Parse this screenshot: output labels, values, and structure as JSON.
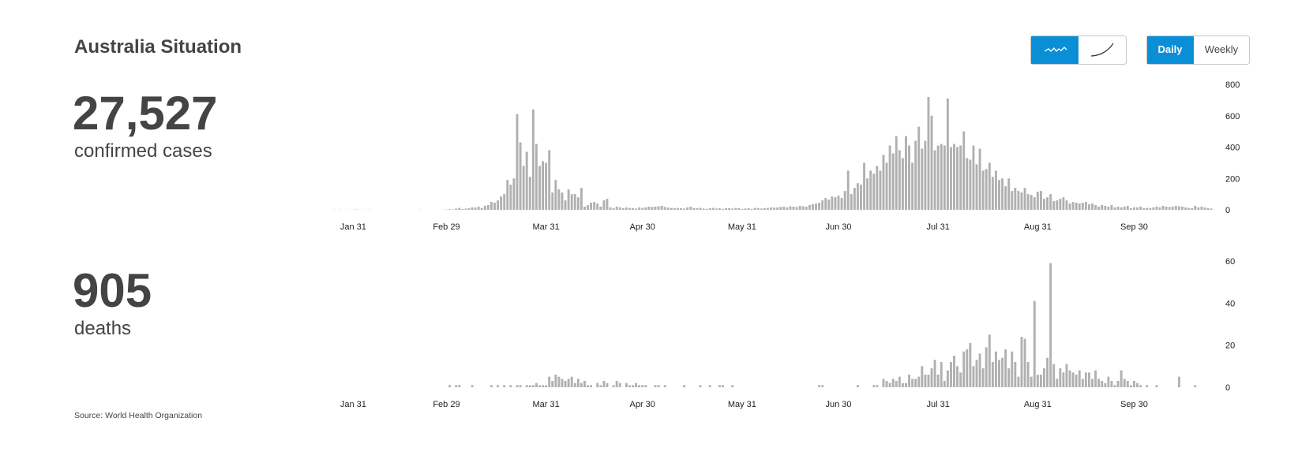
{
  "title": "Australia Situation",
  "source": "Source: World Health Organization",
  "controls": [
    "Daily",
    "Weekly"
  ],
  "chart_data": [
    {
      "type": "bar",
      "headline": "27,527",
      "subtitle": "confirmed cases",
      "color": "#b0b0b0",
      "categories": [
        null,
        null,
        null,
        null,
        null,
        null,
        "Jan 31",
        null,
        null,
        null,
        null,
        null,
        null,
        null,
        null,
        null,
        null,
        null,
        null,
        null,
        null,
        null,
        null,
        null,
        null,
        null,
        null,
        null,
        null,
        null,
        null,
        null,
        null,
        null,
        null,
        "Feb 29",
        null,
        null,
        null,
        null,
        null,
        null,
        null,
        null,
        null,
        null,
        null,
        null,
        null,
        null,
        null,
        null,
        null,
        null,
        null,
        null,
        null,
        null,
        null,
        null,
        null,
        null,
        null,
        null,
        null,
        null,
        "Mar 31",
        null,
        null,
        null,
        null,
        null,
        null,
        null,
        null,
        null,
        null,
        null,
        null,
        null,
        null,
        null,
        null,
        null,
        null,
        null,
        null,
        null,
        null,
        null,
        null,
        null,
        null,
        null,
        null,
        null,
        "Apr 30",
        null,
        null,
        null,
        null,
        null,
        null,
        null,
        null,
        null,
        null,
        null,
        null,
        null,
        null,
        null,
        null,
        null,
        null,
        null,
        null,
        null,
        null,
        null,
        null,
        null,
        null,
        null,
        null,
        null,
        null,
        "May 31",
        null,
        null,
        null,
        null,
        null,
        null,
        null,
        null,
        null,
        null,
        null,
        null,
        null,
        null,
        null,
        null,
        null,
        null,
        null,
        null,
        null,
        null,
        null,
        null,
        null,
        null,
        null,
        null,
        null,
        "Jun 30",
        null,
        null,
        null,
        null,
        null,
        null,
        null,
        null,
        null,
        null,
        null,
        null,
        null,
        null,
        null,
        null,
        null,
        null,
        null,
        null,
        null,
        null,
        null,
        null,
        null,
        null,
        null,
        null,
        null,
        null,
        "Jul 31",
        null,
        null,
        null,
        null,
        null,
        null,
        null,
        null,
        null,
        null,
        null,
        null,
        null,
        null,
        null,
        null,
        null,
        null,
        null,
        null,
        null,
        null,
        null,
        null,
        null,
        null,
        null,
        null,
        null,
        null,
        "Aug 31",
        null,
        null,
        null,
        null,
        null,
        null,
        null,
        null,
        null,
        null,
        null,
        null,
        null,
        null,
        null,
        null,
        null,
        null,
        null,
        null,
        null,
        null,
        null,
        null,
        null,
        null,
        null,
        null,
        null,
        "Sep 30",
        null,
        null,
        null,
        null,
        null,
        null,
        null,
        null,
        null,
        null,
        null,
        null,
        null,
        null,
        null,
        null,
        null,
        null,
        null,
        null,
        null,
        null,
        null,
        null
      ],
      "values": [
        1,
        0,
        1,
        0,
        1,
        0,
        1,
        2,
        0,
        1,
        0,
        1,
        0,
        0,
        0,
        0,
        0,
        0,
        0,
        0,
        0,
        0,
        0,
        0,
        0,
        0,
        0,
        1,
        0,
        0,
        0,
        0,
        0,
        0,
        1,
        2,
        4,
        2,
        8,
        12,
        5,
        8,
        10,
        15,
        14,
        20,
        12,
        26,
        30,
        50,
        45,
        60,
        85,
        100,
        190,
        160,
        200,
        610,
        430,
        280,
        370,
        210,
        640,
        420,
        280,
        310,
        300,
        380,
        110,
        190,
        130,
        110,
        60,
        130,
        100,
        100,
        80,
        140,
        20,
        30,
        45,
        50,
        40,
        20,
        60,
        70,
        15,
        10,
        20,
        15,
        10,
        15,
        12,
        10,
        8,
        15,
        12,
        15,
        20,
        18,
        20,
        22,
        25,
        18,
        14,
        12,
        10,
        12,
        10,
        8,
        15,
        20,
        10,
        10,
        12,
        8,
        6,
        10,
        12,
        8,
        10,
        6,
        10,
        10,
        8,
        12,
        10,
        6,
        8,
        10,
        6,
        12,
        10,
        8,
        10,
        12,
        15,
        14,
        15,
        18,
        20,
        15,
        22,
        20,
        18,
        25,
        22,
        20,
        30,
        35,
        40,
        45,
        60,
        75,
        65,
        85,
        80,
        90,
        75,
        120,
        250,
        100,
        140,
        170,
        160,
        300,
        200,
        250,
        230,
        280,
        250,
        350,
        300,
        410,
        360,
        470,
        380,
        330,
        470,
        410,
        300,
        440,
        530,
        390,
        440,
        720,
        600,
        380,
        410,
        420,
        410,
        710,
        400,
        420,
        400,
        410,
        500,
        330,
        320,
        410,
        290,
        390,
        250,
        260,
        300,
        210,
        250,
        190,
        200,
        150,
        200,
        120,
        140,
        120,
        110,
        140,
        100,
        95,
        80,
        115,
        120,
        70,
        80,
        100,
        55,
        60,
        70,
        80,
        60,
        40,
        50,
        45,
        40,
        45,
        50,
        35,
        40,
        30,
        20,
        30,
        25,
        20,
        30,
        15,
        20,
        15,
        20,
        25,
        10,
        15,
        15,
        20,
        10,
        12,
        10,
        15,
        20,
        15,
        25,
        20,
        18,
        20,
        25,
        22,
        20,
        15,
        12,
        10,
        25,
        15,
        20,
        15,
        10,
        8
      ],
      "ylim": [
        0,
        800
      ],
      "yticks": [
        0,
        200,
        400,
        600,
        800
      ]
    },
    {
      "type": "bar",
      "headline": "905",
      "subtitle": "deaths",
      "color": "#b0b0b0",
      "categories": [
        null,
        null,
        null,
        null,
        null,
        null,
        "Jan 31",
        null,
        null,
        null,
        null,
        null,
        null,
        null,
        null,
        null,
        null,
        null,
        null,
        null,
        null,
        null,
        null,
        null,
        null,
        null,
        null,
        null,
        null,
        null,
        null,
        null,
        null,
        null,
        null,
        "Feb 29",
        null,
        null,
        null,
        null,
        null,
        null,
        null,
        null,
        null,
        null,
        null,
        null,
        null,
        null,
        null,
        null,
        null,
        null,
        null,
        null,
        null,
        null,
        null,
        null,
        null,
        null,
        null,
        null,
        null,
        null,
        "Mar 31",
        null,
        null,
        null,
        null,
        null,
        null,
        null,
        null,
        null,
        null,
        null,
        null,
        null,
        null,
        null,
        null,
        null,
        null,
        null,
        null,
        null,
        null,
        null,
        null,
        null,
        null,
        null,
        null,
        null,
        "Apr 30",
        null,
        null,
        null,
        null,
        null,
        null,
        null,
        null,
        null,
        null,
        null,
        null,
        null,
        null,
        null,
        null,
        null,
        null,
        null,
        null,
        null,
        null,
        null,
        null,
        null,
        null,
        null,
        null,
        null,
        null,
        "May 31",
        null,
        null,
        null,
        null,
        null,
        null,
        null,
        null,
        null,
        null,
        null,
        null,
        null,
        null,
        null,
        null,
        null,
        null,
        null,
        null,
        null,
        null,
        null,
        null,
        null,
        null,
        null,
        null,
        null,
        "Jun 30",
        null,
        null,
        null,
        null,
        null,
        null,
        null,
        null,
        null,
        null,
        null,
        null,
        null,
        null,
        null,
        null,
        null,
        null,
        null,
        null,
        null,
        null,
        null,
        null,
        null,
        null,
        null,
        null,
        null,
        null,
        "Jul 31",
        null,
        null,
        null,
        null,
        null,
        null,
        null,
        null,
        null,
        null,
        null,
        null,
        null,
        null,
        null,
        null,
        null,
        null,
        null,
        null,
        null,
        null,
        null,
        null,
        null,
        null,
        null,
        null,
        null,
        null,
        "Aug 31",
        null,
        null,
        null,
        null,
        null,
        null,
        null,
        null,
        null,
        null,
        null,
        null,
        null,
        null,
        null,
        null,
        null,
        null,
        null,
        null,
        null,
        null,
        null,
        null,
        null,
        null,
        null,
        null,
        null,
        "Sep 30",
        null,
        null,
        null,
        null,
        null,
        null,
        null,
        null,
        null,
        null,
        null,
        null,
        null,
        null,
        null,
        null,
        null,
        null,
        null,
        null,
        null,
        null,
        null,
        null
      ],
      "values": [
        0,
        0,
        0,
        0,
        0,
        0,
        0,
        0,
        0,
        0,
        0,
        0,
        0,
        0,
        0,
        0,
        0,
        0,
        0,
        0,
        0,
        0,
        0,
        0,
        0,
        0,
        0,
        0,
        0,
        0,
        0,
        0,
        0,
        0,
        0,
        0,
        1,
        0,
        1,
        1,
        0,
        0,
        0,
        1,
        0,
        0,
        0,
        0,
        0,
        1,
        0,
        1,
        0,
        1,
        0,
        1,
        0,
        1,
        1,
        0,
        1,
        1,
        1,
        2,
        1,
        1,
        1,
        5,
        3,
        6,
        5,
        4,
        3,
        4,
        5,
        2,
        4,
        2,
        3,
        1,
        1,
        0,
        2,
        1,
        3,
        2,
        0,
        1,
        3,
        2,
        0,
        2,
        1,
        1,
        2,
        1,
        1,
        1,
        0,
        0,
        1,
        1,
        0,
        1,
        0,
        0,
        0,
        0,
        0,
        1,
        0,
        0,
        0,
        0,
        1,
        0,
        0,
        1,
        0,
        0,
        1,
        1,
        0,
        0,
        1,
        0,
        0,
        0,
        0,
        0,
        0,
        0,
        0,
        0,
        0,
        0,
        0,
        0,
        0,
        0,
        0,
        0,
        0,
        0,
        0,
        0,
        0,
        0,
        0,
        0,
        0,
        1,
        1,
        0,
        0,
        0,
        0,
        0,
        0,
        0,
        0,
        0,
        0,
        1,
        0,
        0,
        0,
        0,
        1,
        1,
        0,
        4,
        3,
        2,
        4,
        3,
        5,
        2,
        2,
        6,
        4,
        4,
        5,
        10,
        6,
        6,
        9,
        13,
        6,
        12,
        3,
        8,
        12,
        15,
        10,
        7,
        17,
        18,
        21,
        10,
        13,
        16,
        9,
        19,
        25,
        12,
        17,
        13,
        14,
        18,
        9,
        17,
        12,
        5,
        24,
        23,
        12,
        5,
        41,
        6,
        6,
        9,
        14,
        59,
        11,
        4,
        9,
        7,
        11,
        8,
        7,
        6,
        8,
        4,
        7,
        7,
        4,
        8,
        4,
        3,
        2,
        5,
        3,
        1,
        3,
        8,
        4,
        3,
        1,
        3,
        2,
        1,
        0,
        1,
        0,
        0,
        1,
        0,
        0,
        0,
        0,
        0,
        0,
        5,
        0,
        0,
        0,
        0,
        1,
        0,
        0,
        0,
        0,
        0
      ],
      "ylim": [
        0,
        60
      ],
      "yticks": [
        0,
        20,
        40,
        60
      ]
    }
  ]
}
